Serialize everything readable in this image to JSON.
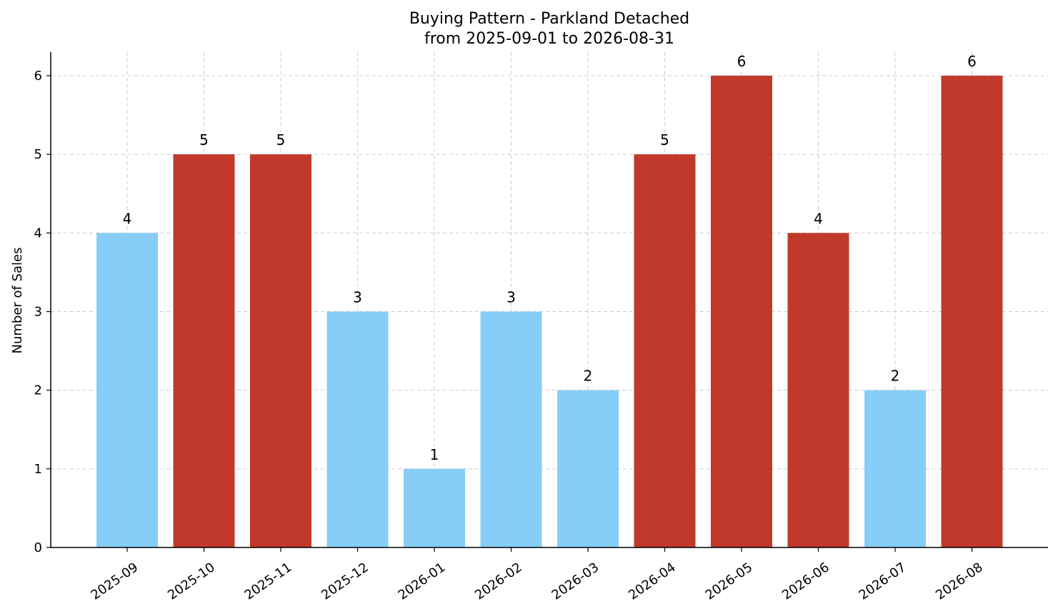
{
  "chart_data": {
    "type": "bar",
    "title": "Buying Pattern - Parkland Detached",
    "subtitle": "from 2025-09-01 to 2026-08-31",
    "xlabel": "",
    "ylabel": "Number of Sales",
    "categories": [
      "2025-09",
      "2025-10",
      "2025-11",
      "2025-12",
      "2026-01",
      "2026-02",
      "2026-03",
      "2026-04",
      "2026-05",
      "2026-06",
      "2026-07",
      "2026-08"
    ],
    "values": [
      4,
      5,
      5,
      3,
      1,
      3,
      2,
      5,
      6,
      4,
      2,
      6
    ],
    "bar_colors": [
      "#87CEF7",
      "#C0392B",
      "#C0392B",
      "#87CEF7",
      "#87CEF7",
      "#87CEF7",
      "#87CEF7",
      "#C0392B",
      "#C0392B",
      "#C0392B",
      "#87CEF7",
      "#C0392B"
    ],
    "ylim": [
      0,
      6.3
    ],
    "yticks": [
      0,
      1,
      2,
      3,
      4,
      5,
      6
    ],
    "grid": true,
    "legend": "none"
  }
}
